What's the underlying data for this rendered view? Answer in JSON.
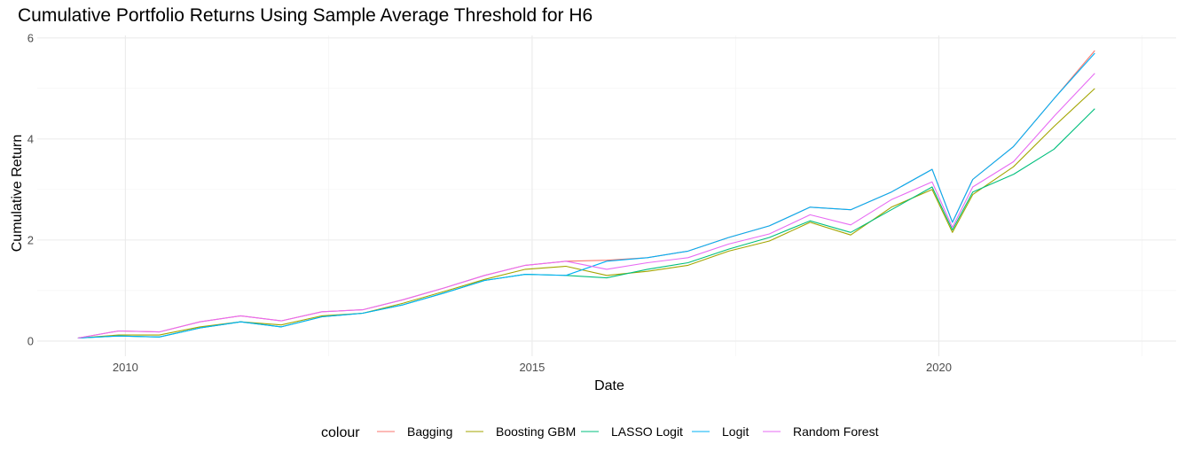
{
  "chart_data": {
    "type": "line",
    "title": "Cumulative Portfolio Returns Using Sample Average Threshold for H6",
    "xlabel": "Date",
    "ylabel": "Cumulative Return",
    "x_range": [
      "2008-12-01",
      "2022-12-01"
    ],
    "ylim": [
      -0.3,
      6.05
    ],
    "x_ticks": [
      "2010",
      "2015",
      "2020"
    ],
    "y_ticks": [
      "0",
      "2",
      "4",
      "6"
    ],
    "grid": true,
    "legend": {
      "title": "colour",
      "position": "bottom"
    },
    "x": [
      "2009-06",
      "2009-12",
      "2010-06",
      "2010-12",
      "2011-06",
      "2011-12",
      "2012-06",
      "2012-12",
      "2013-06",
      "2013-12",
      "2014-06",
      "2014-12",
      "2015-06",
      "2015-12",
      "2016-06",
      "2016-12",
      "2017-06",
      "2017-12",
      "2018-06",
      "2018-12",
      "2019-06",
      "2019-12",
      "2020-03",
      "2020-06",
      "2020-12",
      "2021-06",
      "2021-12"
    ],
    "series": [
      {
        "name": "Bagging",
        "color": "#F8766D",
        "values": [
          0.06,
          0.2,
          0.18,
          0.38,
          0.5,
          0.4,
          0.58,
          0.62,
          0.82,
          1.05,
          1.3,
          1.5,
          1.58,
          1.6,
          1.65,
          1.78,
          2.05,
          2.28,
          2.65,
          2.6,
          2.95,
          3.4,
          2.35,
          3.2,
          3.85,
          4.8,
          5.75
        ]
      },
      {
        "name": "Boosting GBM",
        "color": "#A3A500",
        "values": [
          0.06,
          0.12,
          0.12,
          0.28,
          0.38,
          0.32,
          0.5,
          0.55,
          0.75,
          0.98,
          1.22,
          1.42,
          1.48,
          1.3,
          1.38,
          1.5,
          1.78,
          1.98,
          2.35,
          2.1,
          2.65,
          3.0,
          2.15,
          2.9,
          3.45,
          4.25,
          5.0
        ]
      },
      {
        "name": "LASSO Logit",
        "color": "#00BF7D",
        "values": [
          0.06,
          0.1,
          0.08,
          0.26,
          0.38,
          0.28,
          0.48,
          0.55,
          0.72,
          0.95,
          1.2,
          1.32,
          1.3,
          1.25,
          1.42,
          1.55,
          1.82,
          2.05,
          2.38,
          2.15,
          2.6,
          3.05,
          2.2,
          2.95,
          3.3,
          3.8,
          4.6
        ]
      },
      {
        "name": "Logit",
        "color": "#00B0F6",
        "values": [
          0.06,
          0.1,
          0.08,
          0.26,
          0.38,
          0.28,
          0.48,
          0.55,
          0.72,
          0.95,
          1.2,
          1.32,
          1.3,
          1.58,
          1.65,
          1.78,
          2.05,
          2.28,
          2.65,
          2.6,
          2.95,
          3.4,
          2.35,
          3.2,
          3.85,
          4.8,
          5.7
        ]
      },
      {
        "name": "Random Forest",
        "color": "#E76BF3",
        "values": [
          0.06,
          0.2,
          0.18,
          0.38,
          0.5,
          0.4,
          0.58,
          0.62,
          0.82,
          1.05,
          1.3,
          1.5,
          1.58,
          1.42,
          1.55,
          1.65,
          1.92,
          2.12,
          2.5,
          2.3,
          2.8,
          3.15,
          2.25,
          3.05,
          3.55,
          4.45,
          5.3
        ]
      }
    ]
  }
}
